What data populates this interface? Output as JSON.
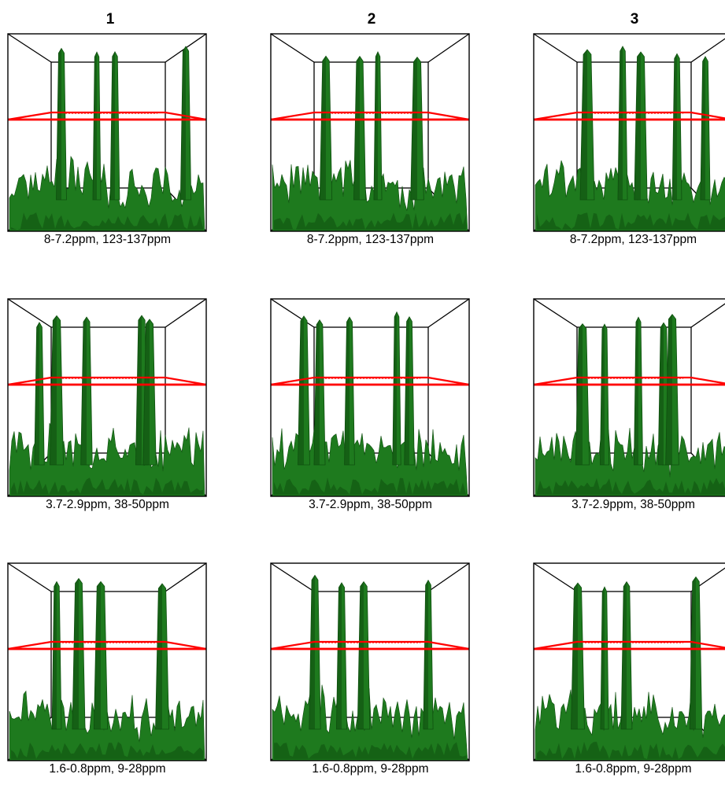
{
  "columns": [
    {
      "label": "1"
    },
    {
      "label": "2"
    },
    {
      "label": "3"
    }
  ],
  "rows": [
    {
      "caption": "8-7.2ppm, 123-137ppm"
    },
    {
      "caption": "3.7-2.9ppm, 38-50ppm"
    },
    {
      "caption": "1.6-0.8ppm, 9-28ppm"
    }
  ],
  "colors": {
    "surface": "#1e7a1e",
    "surface_dark": "#0f4f0f",
    "threshold_plane": "#ff0000",
    "box": "#000000"
  }
}
